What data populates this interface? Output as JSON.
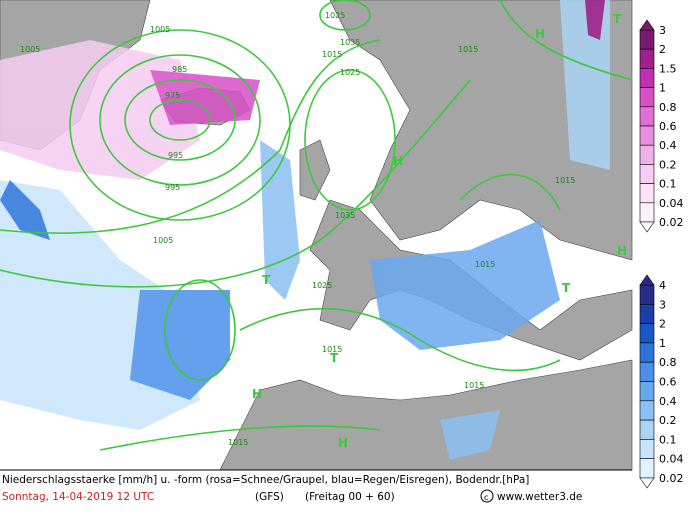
{
  "map": {
    "isobar_labels": [
      "1005",
      "1025",
      "995",
      "1015",
      "975",
      "985",
      "995",
      "1025",
      "1015",
      "1035",
      "1035",
      "1025",
      "1015",
      "1005",
      "1015",
      "1015",
      "1015",
      "1005",
      "1015"
    ],
    "pressure_centers": [
      "H",
      "T",
      "H",
      "T",
      "T",
      "H",
      "H",
      "T",
      "H"
    ],
    "snow_legend": {
      "labels": [
        3,
        2,
        1.5,
        1,
        0.8,
        0.6,
        0.4,
        0.2,
        0.1,
        0.04,
        0.02
      ],
      "colors": [
        "#7a1a6e",
        "#a0208e",
        "#c030b0",
        "#d850c8",
        "#e070d8",
        "#e890e0",
        "#f0b0ea",
        "#f6ccf2",
        "#fae2f8",
        "#fdf2fc"
      ]
    },
    "rain_legend": {
      "labels": [
        4,
        3,
        2,
        1,
        0.8,
        0.6,
        0.4,
        0.2,
        0.1,
        0.04,
        0.02
      ],
      "colors": [
        "#2a2a8a",
        "#1c3ca8",
        "#1a58c8",
        "#2a74dc",
        "#4a90e8",
        "#6aa8ee",
        "#8ac0f2",
        "#aad4f6",
        "#c8e4fa",
        "#e2f2fd"
      ]
    }
  },
  "footer": {
    "description": "Niederschlagsstaerke [mm/h] u. -form (rosa=Schnee/Graupel, blau=Regen/Eisregen), Bodendr.[hPa]",
    "date": "Sonntag, 14-04-2019  12 UTC",
    "model": "(GFS)",
    "run": "(Freitag 00 + 60)",
    "site": "www.wetter3.de"
  }
}
